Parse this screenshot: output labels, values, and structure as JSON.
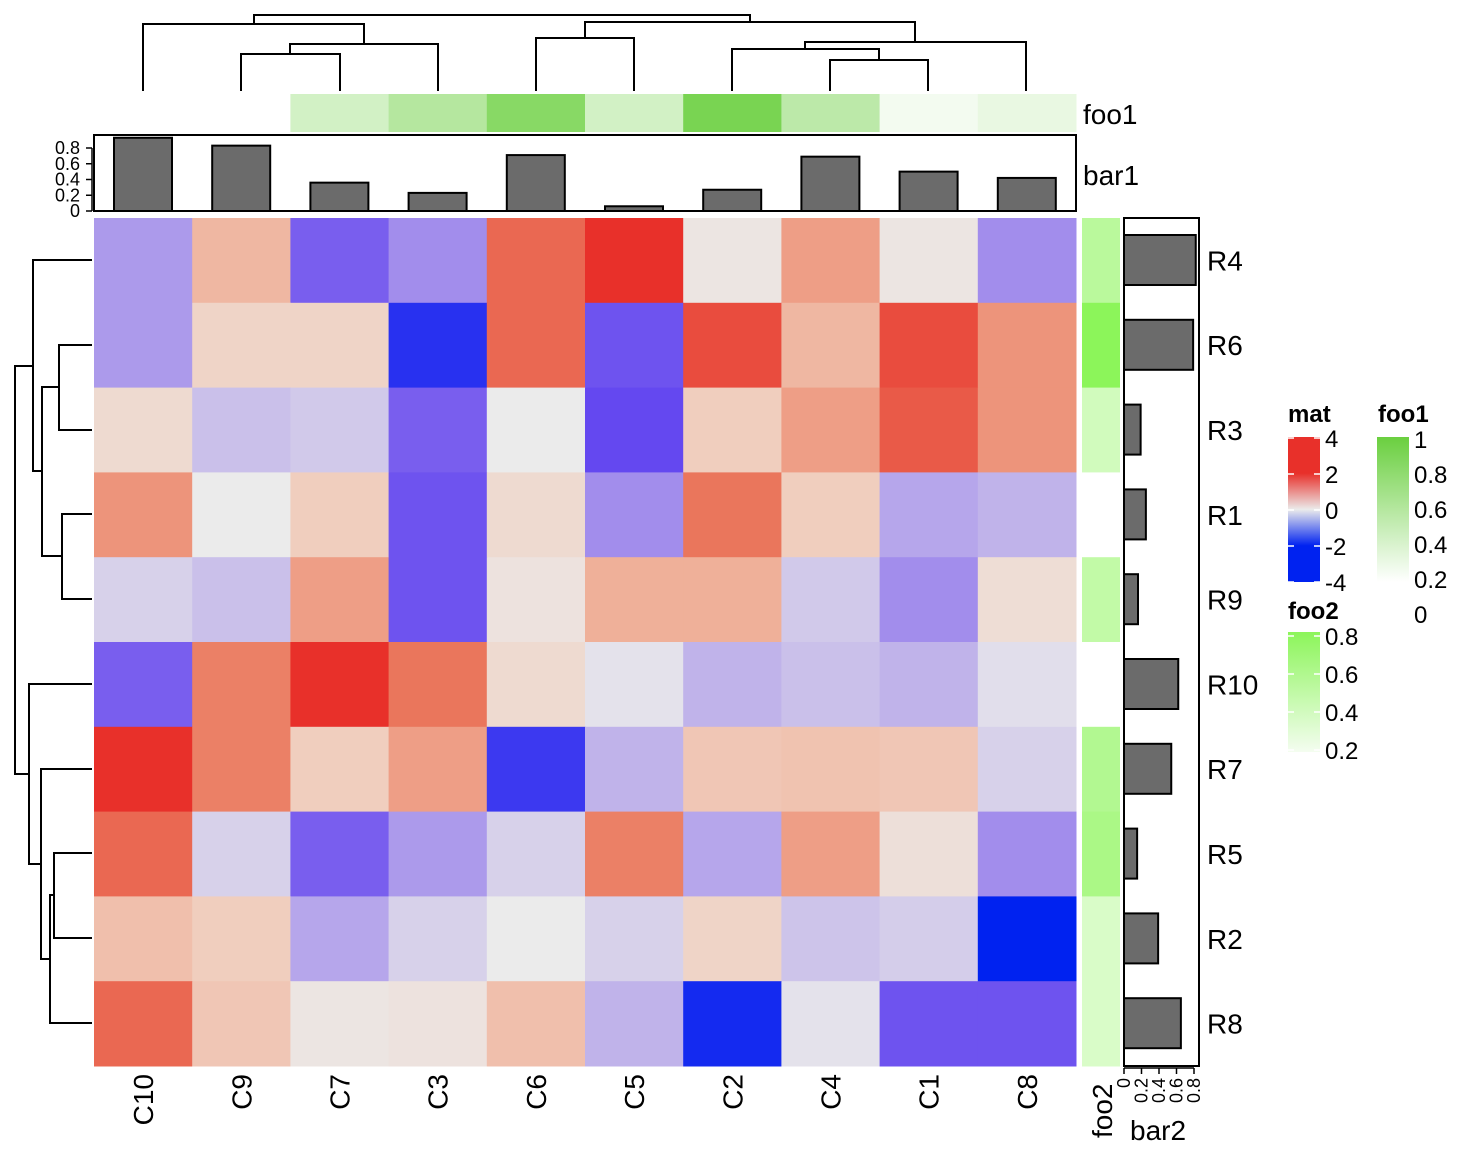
{
  "chart_data": {
    "type": "heatmap",
    "columns": [
      "C10",
      "C9",
      "C7",
      "C3",
      "C6",
      "C5",
      "C2",
      "C4",
      "C1",
      "C8"
    ],
    "rows": [
      "R4",
      "R6",
      "R3",
      "R1",
      "R9",
      "R10",
      "R7",
      "R5",
      "R2",
      "R8"
    ],
    "values": [
      [
        -0.8,
        0.8,
        -1.3,
        -0.9,
        1.6,
        2.2,
        0.1,
        1.1,
        0.1,
        -0.9
      ],
      [
        -0.8,
        0.4,
        0.4,
        -1.8,
        1.6,
        -1.4,
        1.8,
        0.8,
        1.8,
        1.2
      ],
      [
        0.3,
        -0.5,
        -0.4,
        -1.3,
        0.0,
        -1.5,
        0.5,
        1.1,
        1.7,
        1.2
      ],
      [
        1.2,
        0.0,
        0.5,
        -1.4,
        0.3,
        -0.9,
        1.5,
        0.5,
        -0.7,
        -0.6
      ],
      [
        -0.3,
        -0.5,
        1.1,
        -1.4,
        0.15,
        0.9,
        0.9,
        -0.4,
        -0.9,
        0.25
      ],
      [
        -1.3,
        1.4,
        2.1,
        1.5,
        0.3,
        -0.1,
        -0.6,
        -0.5,
        -0.6,
        -0.15
      ],
      [
        2.1,
        1.4,
        0.5,
        1.1,
        -1.7,
        -0.6,
        0.6,
        0.65,
        0.6,
        -0.3
      ],
      [
        1.6,
        -0.3,
        -1.3,
        -0.8,
        -0.3,
        1.4,
        -0.7,
        1.1,
        0.2,
        -0.9
      ],
      [
        0.7,
        0.5,
        -0.7,
        -0.3,
        0.0,
        -0.3,
        0.4,
        -0.45,
        -0.35,
        -2.1
      ],
      [
        1.6,
        0.6,
        0.1,
        0.15,
        0.7,
        -0.6,
        -1.9,
        -0.1,
        -1.4,
        -1.4
      ]
    ],
    "column_annotations": {
      "foo1": {
        "label": "foo1",
        "values": [
          0.0,
          0.0,
          0.3,
          0.5,
          0.8,
          0.3,
          0.9,
          0.45,
          0.08,
          0.15
        ]
      },
      "bar1": {
        "label": "bar1",
        "values": [
          0.93,
          0.83,
          0.36,
          0.23,
          0.71,
          0.06,
          0.27,
          0.69,
          0.5,
          0.42
        ],
        "ticks": [
          "0",
          "0.2",
          "0.4",
          "0.6",
          "0.8"
        ]
      }
    },
    "row_annotations": {
      "foo2": {
        "label": "foo2",
        "values": [
          0.55,
          0.85,
          0.4,
          0.1,
          0.5,
          0.1,
          0.6,
          0.65,
          0.35,
          0.35
        ]
      },
      "bar2": {
        "label": "bar2",
        "values": [
          0.82,
          0.79,
          0.19,
          0.25,
          0.16,
          0.62,
          0.54,
          0.15,
          0.39,
          0.65
        ],
        "ticks": [
          "0",
          "0.2",
          "0.4",
          "0.6",
          "0.8"
        ]
      }
    },
    "legends": {
      "mat": {
        "title": "mat",
        "ticks": [
          "4",
          "2",
          "0",
          "-2",
          "-4"
        ],
        "colors": {
          "low": "#0022f0",
          "mid": "#ebebeb",
          "high": "#e8302a"
        }
      },
      "foo1": {
        "title": "foo1",
        "ticks": [
          "1",
          "0.8",
          "0.6",
          "0.4",
          "0.2",
          "0"
        ],
        "color": "#6acf3f"
      },
      "foo2": {
        "title": "foo2",
        "ticks": [
          "0.8",
          "0.6",
          "0.4",
          "0.2"
        ],
        "color": "#8cf55a"
      }
    },
    "row_dendrogram": true,
    "column_dendrogram": true
  }
}
